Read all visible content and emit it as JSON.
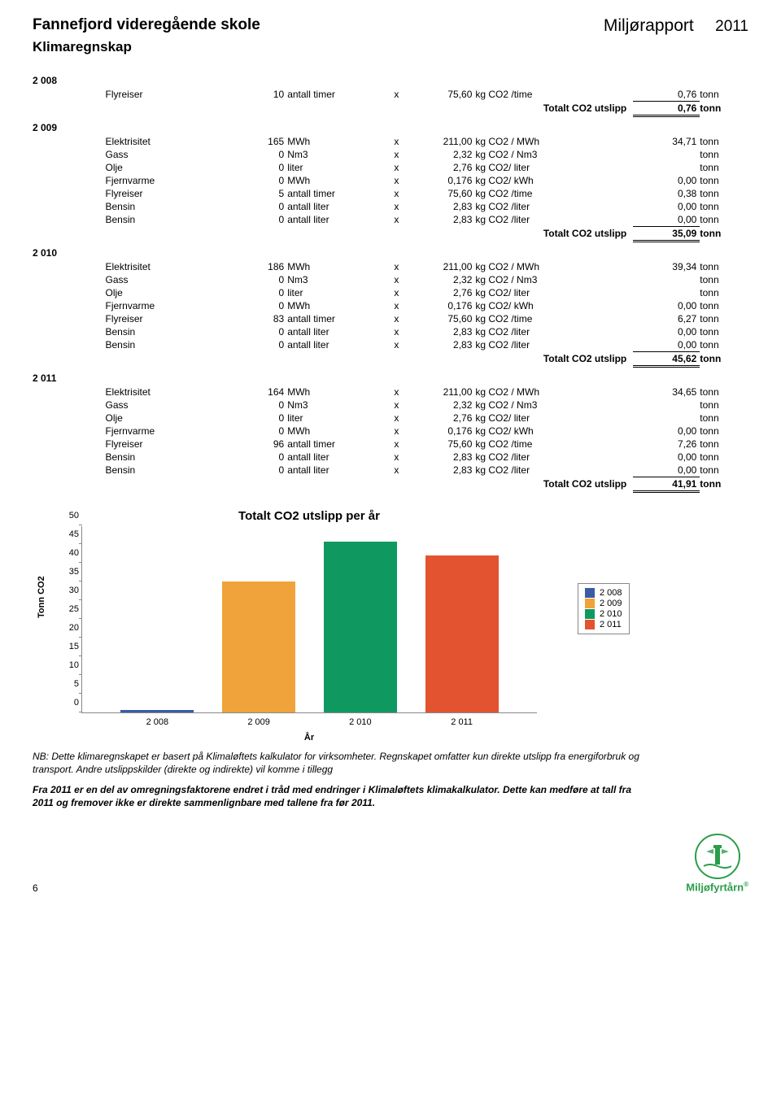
{
  "header": {
    "school": "Fannefjord videregående skole",
    "report_title": "Miljørapport",
    "year": "2011"
  },
  "section_title": "Klimaregnskap",
  "years": [
    {
      "label": "2 008",
      "rows": [
        {
          "item": "Flyreiser",
          "qty": "10",
          "unit": "antall timer",
          "x": "x",
          "factor": "75,60",
          "funit": "kg CO2 /time",
          "result": "0,76",
          "runit": "tonn"
        }
      ],
      "total_label": "Totalt CO2 utslipp",
      "total_value": "0,76",
      "total_unit": "tonn"
    },
    {
      "label": "2 009",
      "rows": [
        {
          "item": "Elektrisitet",
          "qty": "165",
          "unit": "MWh",
          "x": "x",
          "factor": "211,00",
          "funit": "kg CO2 / MWh",
          "result": "34,71",
          "runit": "tonn"
        },
        {
          "item": "Gass",
          "qty": "0",
          "unit": "Nm3",
          "x": "x",
          "factor": "2,32",
          "funit": "kg CO2 / Nm3",
          "result": "",
          "runit": "tonn"
        },
        {
          "item": "Olje",
          "qty": "0",
          "unit": "liter",
          "x": "x",
          "factor": "2,76",
          "funit": "kg CO2/ liter",
          "result": "",
          "runit": "tonn"
        },
        {
          "item": "Fjernvarme",
          "qty": "0",
          "unit": "MWh",
          "x": "x",
          "factor": "0,176",
          "funit": "kg CO2/ kWh",
          "result": "0,00",
          "runit": "tonn"
        },
        {
          "item": "Flyreiser",
          "qty": "5",
          "unit": "antall timer",
          "x": "x",
          "factor": "75,60",
          "funit": "kg CO2 /time",
          "result": "0,38",
          "runit": "tonn"
        },
        {
          "item": "Bensin",
          "qty": "0",
          "unit": "antall liter",
          "x": "x",
          "factor": "2,83",
          "funit": "kg CO2 /liter",
          "result": "0,00",
          "runit": "tonn"
        },
        {
          "item": "Bensin",
          "qty": "0",
          "unit": "antall liter",
          "x": "x",
          "factor": "2,83",
          "funit": "kg CO2 /liter",
          "result": "0,00",
          "runit": "tonn"
        }
      ],
      "total_label": "Totalt CO2 utslipp",
      "total_value": "35,09",
      "total_unit": "tonn"
    },
    {
      "label": "2 010",
      "rows": [
        {
          "item": "Elektrisitet",
          "qty": "186",
          "unit": "MWh",
          "x": "x",
          "factor": "211,00",
          "funit": "kg CO2 / MWh",
          "result": "39,34",
          "runit": "tonn"
        },
        {
          "item": "Gass",
          "qty": "0",
          "unit": "Nm3",
          "x": "x",
          "factor": "2,32",
          "funit": "kg CO2 / Nm3",
          "result": "",
          "runit": "tonn"
        },
        {
          "item": "Olje",
          "qty": "0",
          "unit": "liter",
          "x": "x",
          "factor": "2,76",
          "funit": "kg CO2/ liter",
          "result": "",
          "runit": "tonn"
        },
        {
          "item": "Fjernvarme",
          "qty": "0",
          "unit": "MWh",
          "x": "x",
          "factor": "0,176",
          "funit": "kg CO2/ kWh",
          "result": "0,00",
          "runit": "tonn"
        },
        {
          "item": "Flyreiser",
          "qty": "83",
          "unit": "antall timer",
          "x": "x",
          "factor": "75,60",
          "funit": "kg CO2 /time",
          "result": "6,27",
          "runit": "tonn"
        },
        {
          "item": "Bensin",
          "qty": "0",
          "unit": "antall liter",
          "x": "x",
          "factor": "2,83",
          "funit": "kg CO2 /liter",
          "result": "0,00",
          "runit": "tonn"
        },
        {
          "item": "Bensin",
          "qty": "0",
          "unit": "antall liter",
          "x": "x",
          "factor": "2,83",
          "funit": "kg CO2 /liter",
          "result": "0,00",
          "runit": "tonn"
        }
      ],
      "total_label": "Totalt CO2 utslipp",
      "total_value": "45,62",
      "total_unit": "tonn"
    },
    {
      "label": "2 011",
      "rows": [
        {
          "item": "Elektrisitet",
          "qty": "164",
          "unit": "MWh",
          "x": "x",
          "factor": "211,00",
          "funit": "kg CO2 / MWh",
          "result": "34,65",
          "runit": "tonn"
        },
        {
          "item": "Gass",
          "qty": "0",
          "unit": "Nm3",
          "x": "x",
          "factor": "2,32",
          "funit": "kg CO2 / Nm3",
          "result": "",
          "runit": "tonn"
        },
        {
          "item": "Olje",
          "qty": "0",
          "unit": "liter",
          "x": "x",
          "factor": "2,76",
          "funit": "kg CO2/ liter",
          "result": "",
          "runit": "tonn"
        },
        {
          "item": "Fjernvarme",
          "qty": "0",
          "unit": "MWh",
          "x": "x",
          "factor": "0,176",
          "funit": "kg CO2/ kWh",
          "result": "0,00",
          "runit": "tonn"
        },
        {
          "item": "Flyreiser",
          "qty": "96",
          "unit": "antall timer",
          "x": "x",
          "factor": "75,60",
          "funit": "kg CO2 /time",
          "result": "7,26",
          "runit": "tonn"
        },
        {
          "item": "Bensin",
          "qty": "0",
          "unit": "antall liter",
          "x": "x",
          "factor": "2,83",
          "funit": "kg CO2 /liter",
          "result": "0,00",
          "runit": "tonn"
        },
        {
          "item": "Bensin",
          "qty": "0",
          "unit": "antall liter",
          "x": "x",
          "factor": "2,83",
          "funit": "kg CO2 /liter",
          "result": "0,00",
          "runit": "tonn"
        }
      ],
      "total_label": "Totalt CO2 utslipp",
      "total_value": "41,91",
      "total_unit": "tonn"
    }
  ],
  "chart": {
    "type": "bar",
    "title": "Totalt CO2 utslipp per år",
    "categories": [
      "2 008",
      "2 009",
      "2 010",
      "2 011"
    ],
    "values": [
      0.76,
      35.09,
      45.62,
      41.91
    ],
    "bar_colors": [
      "#3b5ba5",
      "#f0a33a",
      "#0f9960",
      "#e35330"
    ],
    "ylabel": "Tonn CO2",
    "xlabel": "År",
    "ylim": [
      0,
      50
    ],
    "ytick_step": 5,
    "background_color": "#ffffff",
    "legend_items": [
      "2 008",
      "2 009",
      "2 010",
      "2 011"
    ],
    "label_fontsize": 11,
    "title_fontsize": 15
  },
  "note1": "NB: Dette klimaregnskapet er basert på Klimaløftets kalkulator for virksomheter. Regnskapet omfatter kun direkte utslipp fra energiforbruk og transport. Andre utslippskilder (direkte og indirekte) vil komme i tillegg",
  "note2": "Fra 2011 er en del av omregningsfaktorene endret i tråd med endringer i Klimaløftets klimakalkulator. Dette kan medføre at tall fra 2011 og fremover ikke er direkte sammenlignbare med tallene fra før 2011.",
  "footer": {
    "pagenum": "6",
    "logo_text": "Miljøfyrtårn"
  }
}
